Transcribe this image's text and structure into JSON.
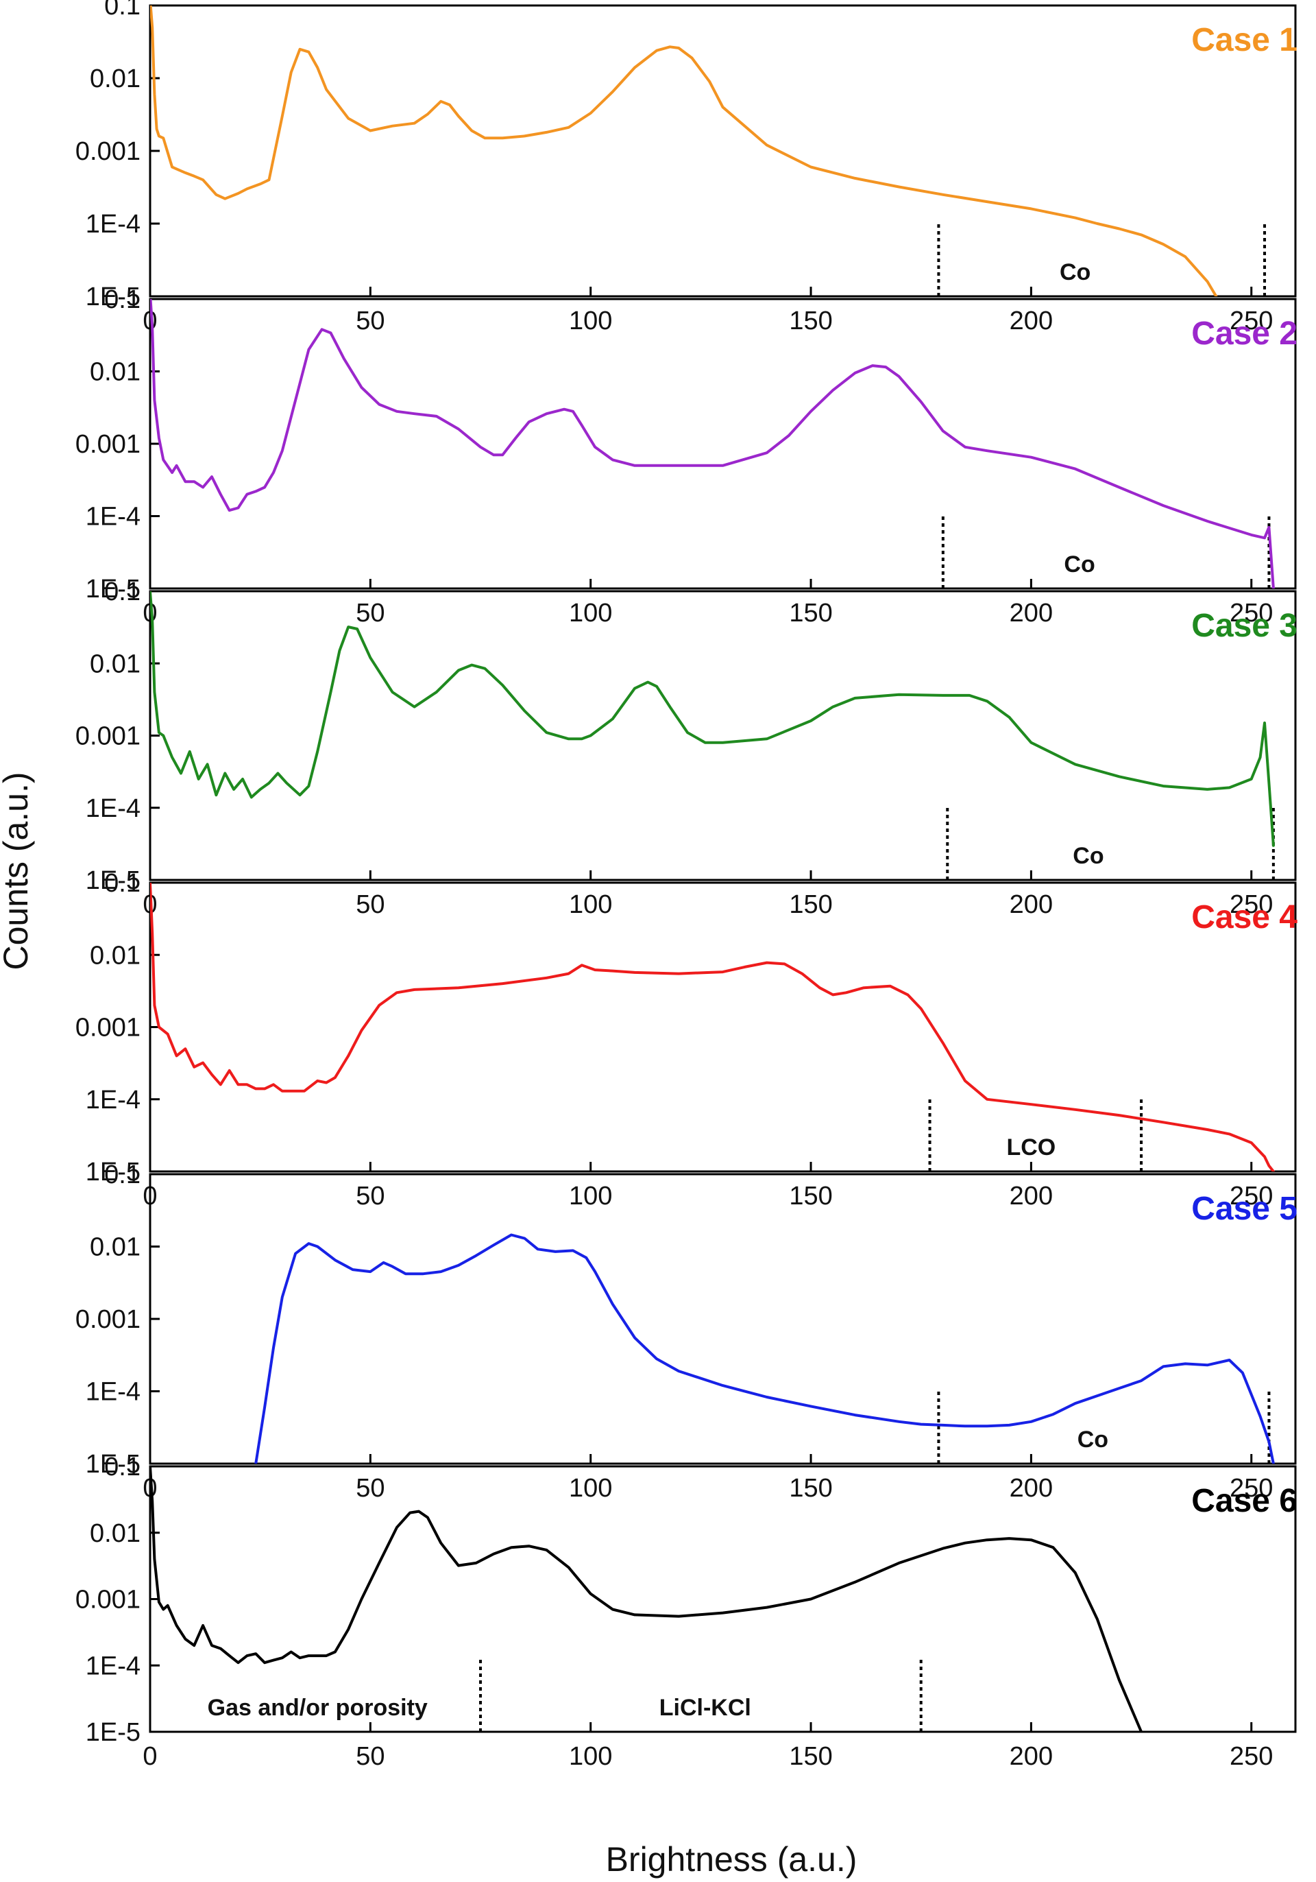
{
  "chart_data": {
    "type": "line",
    "xlabel": "Brightness (a.u.)",
    "ylabel": "Counts (a.u.)",
    "xlim": [
      0,
      260
    ],
    "ylim": [
      1e-05,
      0.1
    ],
    "yscale": "log",
    "x_ticks": [
      0,
      50,
      100,
      150,
      200,
      250
    ],
    "y_tick_values": [
      0.1,
      0.01,
      0.001,
      0.0001,
      1e-05
    ],
    "y_tick_labels": [
      "0.1",
      "0.01",
      "0.001",
      "1E-4",
      "1E-5"
    ],
    "grid": false,
    "panels": [
      {
        "label": "Case 1",
        "color": "#f39422",
        "dividers": [
          179,
          253
        ],
        "regions": [
          {
            "text": "Co",
            "x": 210
          }
        ],
        "series": [
          {
            "x": [
              0,
              0.5,
              1,
              1.5,
              2,
              3,
              5,
              8,
              10,
              12,
              15,
              17,
              20,
              22,
              25,
              27,
              30,
              32,
              34,
              36,
              38,
              40,
              45,
              50,
              55,
              60,
              63,
              66,
              68,
              70,
              73,
              76,
              80,
              85,
              90,
              95,
              100,
              105,
              110,
              115,
              118,
              120,
              123,
              127,
              130,
              140,
              150,
              160,
              170,
              180,
              190,
              200,
              210,
              215,
              220,
              225,
              230,
              235,
              240,
              242
            ],
            "y": [
              0.12,
              0.05,
              0.006,
              0.002,
              0.0016,
              0.0015,
              0.0006,
              0.0005,
              0.00045,
              0.0004,
              0.00025,
              0.00022,
              0.00026,
              0.0003,
              0.00035,
              0.0004,
              0.003,
              0.012,
              0.025,
              0.023,
              0.014,
              0.007,
              0.0028,
              0.0019,
              0.0022,
              0.0024,
              0.0032,
              0.0048,
              0.0043,
              0.003,
              0.0019,
              0.0015,
              0.0015,
              0.0016,
              0.0018,
              0.0021,
              0.0033,
              0.0065,
              0.014,
              0.024,
              0.027,
              0.026,
              0.019,
              0.009,
              0.004,
              0.0012,
              0.0006,
              0.00042,
              0.00032,
              0.00025,
              0.0002,
              0.00016,
              0.00012,
              0.0001,
              8.5e-05,
              7e-05,
              5.2e-05,
              3.5e-05,
              1.6e-05,
              1e-05
            ]
          }
        ]
      },
      {
        "label": "Case 2",
        "color": "#9b27cc",
        "dividers": [
          180,
          254
        ],
        "regions": [
          {
            "text": "Co",
            "x": 211
          }
        ],
        "series": [
          {
            "x": [
              0,
              0.5,
              1,
              2,
              3,
              5,
              6,
              8,
              10,
              12,
              14,
              16,
              18,
              20,
              22,
              24,
              26,
              28,
              30,
              33,
              36,
              39,
              41,
              44,
              48,
              52,
              56,
              60,
              65,
              70,
              75,
              78,
              80,
              83,
              86,
              90,
              94,
              96,
              98,
              101,
              105,
              110,
              120,
              130,
              140,
              145,
              150,
              155,
              160,
              164,
              167,
              170,
              175,
              180,
              185,
              190,
              200,
              210,
              220,
              230,
              240,
              250,
              253,
              254,
              255
            ],
            "y": [
              0.12,
              0.04,
              0.004,
              0.0012,
              0.0006,
              0.0004,
              0.0005,
              0.0003,
              0.0003,
              0.00025,
              0.00035,
              0.0002,
              0.00012,
              0.00013,
              0.0002,
              0.00022,
              0.00025,
              0.0004,
              0.0008,
              0.004,
              0.02,
              0.038,
              0.034,
              0.015,
              0.006,
              0.0035,
              0.0028,
              0.0026,
              0.0024,
              0.0016,
              0.0009,
              0.0007,
              0.0007,
              0.0012,
              0.002,
              0.0026,
              0.003,
              0.0028,
              0.0018,
              0.0009,
              0.0006,
              0.0005,
              0.0005,
              0.0005,
              0.00075,
              0.0013,
              0.0028,
              0.0055,
              0.0095,
              0.012,
              0.0115,
              0.0085,
              0.0038,
              0.0015,
              0.0009,
              0.0008,
              0.00065,
              0.00045,
              0.00025,
              0.00014,
              8.5e-05,
              5.5e-05,
              5e-05,
              7e-05,
              1e-05
            ]
          }
        ]
      },
      {
        "label": "Case 3",
        "color": "#1f8a1f",
        "dividers": [
          181,
          255
        ],
        "regions": [
          {
            "text": "Co",
            "x": 213
          }
        ],
        "series": [
          {
            "x": [
              0,
              0.5,
              1,
              2,
              3,
              5,
              7,
              9,
              11,
              13,
              15,
              17,
              19,
              21,
              23,
              25,
              27,
              29,
              31,
              34,
              36,
              38,
              41,
              43,
              45,
              47,
              50,
              55,
              60,
              65,
              70,
              73,
              76,
              80,
              85,
              90,
              95,
              98,
              100,
              105,
              110,
              113,
              115,
              118,
              122,
              126,
              130,
              140,
              150,
              155,
              160,
              170,
              180,
              186,
              190,
              195,
              200,
              210,
              220,
              230,
              240,
              245,
              250,
              252,
              253,
              254,
              255
            ],
            "y": [
              0.1,
              0.04,
              0.004,
              0.0011,
              0.001,
              0.0005,
              0.0003,
              0.0006,
              0.00025,
              0.0004,
              0.00015,
              0.0003,
              0.00018,
              0.00025,
              0.00014,
              0.00018,
              0.00022,
              0.0003,
              0.00022,
              0.00015,
              0.0002,
              0.0006,
              0.004,
              0.015,
              0.032,
              0.03,
              0.012,
              0.004,
              0.0025,
              0.004,
              0.008,
              0.0095,
              0.0085,
              0.005,
              0.0022,
              0.0011,
              0.0009,
              0.0009,
              0.001,
              0.0017,
              0.0045,
              0.0055,
              0.0048,
              0.0025,
              0.0011,
              0.0008,
              0.0008,
              0.0009,
              0.0016,
              0.0025,
              0.0033,
              0.0037,
              0.0036,
              0.0036,
              0.003,
              0.0018,
              0.0008,
              0.0004,
              0.00027,
              0.0002,
              0.00018,
              0.00019,
              0.00025,
              0.0005,
              0.0015,
              0.00022,
              3e-05
            ]
          }
        ]
      },
      {
        "label": "Case 4",
        "color": "#ee1c1c",
        "dividers": [
          177,
          225
        ],
        "regions": [
          {
            "text": "LCO",
            "x": 200
          }
        ],
        "series": [
          {
            "x": [
              0,
              0.5,
              1,
              2,
              4,
              6,
              8,
              10,
              12,
              14,
              16,
              18,
              20,
              22,
              24,
              26,
              28,
              30,
              32,
              35,
              38,
              40,
              42,
              45,
              48,
              52,
              56,
              60,
              70,
              80,
              90,
              95,
              98,
              101,
              105,
              110,
              120,
              130,
              135,
              140,
              144,
              148,
              152,
              155,
              158,
              162,
              168,
              172,
              175,
              180,
              185,
              190,
              200,
              210,
              220,
              230,
              240,
              245,
              250,
              253,
              254,
              255
            ],
            "y": [
              0.1,
              0.02,
              0.002,
              0.001,
              0.0008,
              0.0004,
              0.0005,
              0.00028,
              0.00032,
              0.00022,
              0.00016,
              0.00025,
              0.00016,
              0.00016,
              0.00014,
              0.00014,
              0.00016,
              0.00013,
              0.00013,
              0.00013,
              0.00018,
              0.00017,
              0.0002,
              0.0004,
              0.0009,
              0.002,
              0.003,
              0.0033,
              0.0035,
              0.004,
              0.0048,
              0.0055,
              0.0072,
              0.0062,
              0.006,
              0.0057,
              0.0055,
              0.0058,
              0.0068,
              0.0078,
              0.0075,
              0.0055,
              0.0035,
              0.0028,
              0.003,
              0.0035,
              0.0037,
              0.0028,
              0.0018,
              0.0006,
              0.00018,
              0.0001,
              8.5e-05,
              7.2e-05,
              6e-05,
              4.8e-05,
              3.8e-05,
              3.3e-05,
              2.5e-05,
              1.6e-05,
              1.2e-05,
              1e-05
            ]
          }
        ]
      },
      {
        "label": "Case 5",
        "color": "#1722e6",
        "dividers": [
          179,
          254
        ],
        "regions": [
          {
            "text": "Co",
            "x": 214
          }
        ],
        "series": [
          {
            "x": [
              24,
              26,
              28,
              30,
              33,
              36,
              38,
              42,
              46,
              50,
              53,
              55,
              58,
              62,
              66,
              70,
              74,
              78,
              82,
              85,
              88,
              92,
              96,
              99,
              101,
              105,
              110,
              115,
              120,
              130,
              140,
              150,
              160,
              170,
              175,
              180,
              185,
              190,
              195,
              200,
              205,
              210,
              220,
              225,
              230,
              235,
              240,
              245,
              248,
              250,
              252,
              254,
              255
            ],
            "y": [
              1e-05,
              6e-05,
              0.0004,
              0.002,
              0.008,
              0.011,
              0.01,
              0.0065,
              0.0048,
              0.0045,
              0.006,
              0.0053,
              0.0042,
              0.0042,
              0.0045,
              0.0055,
              0.0075,
              0.0105,
              0.0145,
              0.013,
              0.0092,
              0.0085,
              0.0088,
              0.007,
              0.0045,
              0.0016,
              0.00055,
              0.00028,
              0.00019,
              0.00012,
              8.3e-05,
              6.2e-05,
              4.7e-05,
              3.8e-05,
              3.5e-05,
              3.4e-05,
              3.3e-05,
              3.3e-05,
              3.4e-05,
              3.8e-05,
              4.8e-05,
              6.8e-05,
              0.00011,
              0.00014,
              0.00022,
              0.00024,
              0.00023,
              0.00027,
              0.00018,
              9e-05,
              4.5e-05,
              2e-05,
              1e-05
            ]
          }
        ]
      },
      {
        "label": "Case 6",
        "color": "#000000",
        "dividers": [
          75,
          175
        ],
        "regions": [
          {
            "text": "Gas and/or porosity",
            "x": 38
          },
          {
            "text": "LiCl-KCl",
            "x": 126
          }
        ],
        "series": [
          {
            "x": [
              0,
              0.5,
              1,
              2,
              3,
              4,
              6,
              8,
              10,
              12,
              14,
              16,
              18,
              20,
              22,
              24,
              26,
              28,
              30,
              32,
              34,
              36,
              38,
              40,
              42,
              45,
              48,
              52,
              56,
              59,
              61,
              63,
              66,
              70,
              74,
              78,
              82,
              86,
              90,
              95,
              100,
              105,
              110,
              120,
              130,
              140,
              150,
              160,
              170,
              180,
              185,
              190,
              195,
              200,
              205,
              210,
              215,
              220,
              225
            ],
            "y": [
              0.1,
              0.03,
              0.004,
              0.0009,
              0.0007,
              0.0008,
              0.0004,
              0.00025,
              0.0002,
              0.0004,
              0.0002,
              0.00018,
              0.00014,
              0.00011,
              0.00014,
              0.00015,
              0.00011,
              0.00012,
              0.00013,
              0.00016,
              0.00013,
              0.00014,
              0.00014,
              0.00014,
              0.00016,
              0.00035,
              0.001,
              0.0035,
              0.012,
              0.02,
              0.021,
              0.017,
              0.007,
              0.0032,
              0.0035,
              0.0048,
              0.006,
              0.0063,
              0.0055,
              0.003,
              0.0012,
              0.0007,
              0.00058,
              0.00055,
              0.00062,
              0.00075,
              0.001,
              0.0018,
              0.0035,
              0.0058,
              0.007,
              0.0078,
              0.0082,
              0.0078,
              0.006,
              0.0025,
              0.0005,
              6e-05,
              1e-05
            ]
          }
        ]
      }
    ]
  }
}
